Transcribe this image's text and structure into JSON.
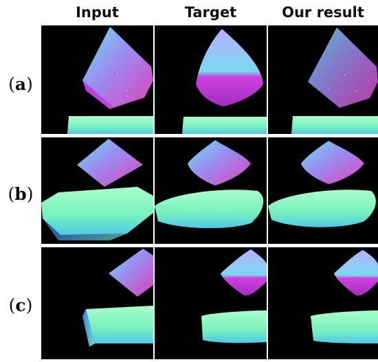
{
  "figure": {
    "column_headers": [
      "Input",
      "Target",
      "Our result"
    ],
    "rows": [
      {
        "label_open": "(",
        "label_letter": "a",
        "label_close": ")"
      },
      {
        "label_open": "(",
        "label_letter": "b",
        "label_close": ")"
      },
      {
        "label_open": "(",
        "label_letter": "c",
        "label_close": ")"
      }
    ]
  },
  "colors": {
    "background": "#000000",
    "normal_map_purple": "#a040e0",
    "normal_map_cyan": "#60e0e0",
    "normal_map_magenta": "#e040c0",
    "normal_map_green": "#80f0a0"
  }
}
